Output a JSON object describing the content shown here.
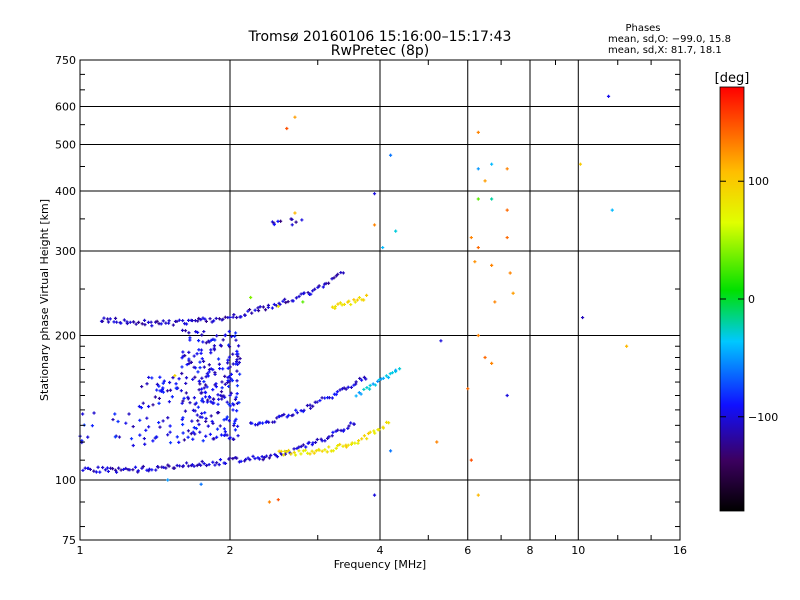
{
  "chart_data": {
    "type": "scatter",
    "title": "Tromsø 20160106 15:16:00–15:17:43",
    "subtitle": "RwPretec (8p)",
    "xlabel": "Frequency [MHz]",
    "ylabel": "Stationary phase Virtual Height [km]",
    "xscale": "log",
    "yscale": "log",
    "xlim": [
      1,
      16
    ],
    "ylim": [
      75,
      750
    ],
    "xticks": [
      1,
      2,
      4,
      6,
      8,
      10,
      16
    ],
    "xtick_labels": [
      "1",
      "2",
      "4",
      "6",
      "8",
      "10",
      "16"
    ],
    "yticks": [
      75,
      100,
      200,
      300,
      400,
      500,
      600,
      750
    ],
    "ytick_labels": [
      "75",
      "100",
      "200",
      "300",
      "400",
      "500",
      "600",
      "750"
    ],
    "grid": true,
    "colorbar": {
      "label": "[deg]",
      "range": [
        -180,
        180
      ],
      "ticks": [
        -100,
        0,
        100
      ],
      "tick_labels": [
        "−100",
        "0",
        "100"
      ]
    },
    "stats": {
      "heading": "Phases",
      "line_o": "mean, sd,O:  −99.0, 15.8",
      "line_x": "mean, sd,X:  81.7, 18.1"
    },
    "traces": [
      {
        "name": "",
        "f": [
          1.0,
          1.1,
          1.2,
          1.3,
          1.4,
          1.5,
          1.6,
          1.7,
          1.8,
          1.9,
          2.0,
          2.2,
          2.4,
          2.6,
          2.8,
          3.0,
          3.2,
          3.4,
          3.6
        ],
        "h": [
          106,
          105,
          105,
          105,
          106,
          107,
          107,
          108,
          108,
          109,
          110,
          111,
          112,
          114,
          117,
          120,
          124,
          128,
          133
        ],
        "phase": -105
      },
      {
        "name": "",
        "f": [
          2.5,
          2.8,
          3.0,
          3.2,
          3.4,
          3.6,
          3.8,
          4.0,
          4.2
        ],
        "h": [
          114,
          114,
          115,
          116,
          118,
          120,
          124,
          128,
          132
        ],
        "phase": 85
      },
      {
        "name": "",
        "f": [
          1.1,
          1.2,
          1.3,
          1.4,
          1.5,
          1.6,
          1.7,
          1.8,
          1.9,
          2.0,
          2.2,
          2.4,
          2.6,
          2.8,
          3.0,
          3.2,
          3.4
        ],
        "h": [
          215,
          215,
          213,
          212,
          212,
          213,
          215,
          215,
          216,
          218,
          224,
          230,
          236,
          242,
          250,
          262,
          275
        ],
        "phase": -110
      },
      {
        "name": "",
        "f": [
          3.2,
          3.4,
          3.6,
          3.8
        ],
        "h": [
          230,
          232,
          236,
          242
        ],
        "phase": 90
      },
      {
        "name": "",
        "f": [
          2.2,
          2.4,
          2.6,
          2.8,
          3.0,
          3.2,
          3.4,
          3.6,
          3.8
        ],
        "h": [
          130,
          133,
          136,
          140,
          145,
          150,
          155,
          160,
          165
        ],
        "phase": -100
      },
      {
        "name": "",
        "f": [
          3.6,
          3.8,
          4.0,
          4.2,
          4.4
        ],
        "h": [
          150,
          155,
          160,
          166,
          172
        ],
        "phase": -40
      }
    ],
    "clusters": [
      {
        "f": [
          1.6,
          2.1
        ],
        "h": [
          120,
          205
        ],
        "n": 240,
        "phase": -100
      },
      {
        "f": [
          1.0,
          1.6
        ],
        "h": [
          118,
          138
        ],
        "n": 40,
        "phase": -95
      },
      {
        "f": [
          1.3,
          1.6
        ],
        "h": [
          140,
          165
        ],
        "n": 35,
        "phase": -100
      },
      {
        "f": [
          2.4,
          2.8
        ],
        "h": [
          340,
          350
        ],
        "n": 10,
        "phase": -110
      }
    ],
    "points": [
      {
        "f": 2.7,
        "h": 570,
        "phase": 120
      },
      {
        "f": 2.6,
        "h": 540,
        "phase": 150
      },
      {
        "f": 11.5,
        "h": 630,
        "phase": -95
      },
      {
        "f": 4.2,
        "h": 475,
        "phase": -60
      },
      {
        "f": 6.3,
        "h": 530,
        "phase": 130
      },
      {
        "f": 6.3,
        "h": 445,
        "phase": -50
      },
      {
        "f": 6.5,
        "h": 420,
        "phase": 120
      },
      {
        "f": 6.7,
        "h": 455,
        "phase": -40
      },
      {
        "f": 7.2,
        "h": 445,
        "phase": 130
      },
      {
        "f": 6.3,
        "h": 385,
        "phase": 30
      },
      {
        "f": 6.7,
        "h": 385,
        "phase": -20
      },
      {
        "f": 7.2,
        "h": 365,
        "phase": 140
      },
      {
        "f": 10.1,
        "h": 455,
        "phase": 100
      },
      {
        "f": 11.7,
        "h": 365,
        "phase": -40
      },
      {
        "f": 6.1,
        "h": 320,
        "phase": 130
      },
      {
        "f": 6.3,
        "h": 305,
        "phase": 140
      },
      {
        "f": 6.2,
        "h": 285,
        "phase": 125
      },
      {
        "f": 6.7,
        "h": 280,
        "phase": 130
      },
      {
        "f": 7.2,
        "h": 320,
        "phase": 140
      },
      {
        "f": 7.3,
        "h": 270,
        "phase": 130
      },
      {
        "f": 6.8,
        "h": 235,
        "phase": 130
      },
      {
        "f": 7.4,
        "h": 245,
        "phase": 120
      },
      {
        "f": 4.05,
        "h": 305,
        "phase": -40
      },
      {
        "f": 4.3,
        "h": 330,
        "phase": -30
      },
      {
        "f": 3.9,
        "h": 395,
        "phase": -100
      },
      {
        "f": 3.9,
        "h": 340,
        "phase": 130
      },
      {
        "f": 10.2,
        "h": 218,
        "phase": -110
      },
      {
        "f": 12.5,
        "h": 190,
        "phase": 110
      },
      {
        "f": 5.3,
        "h": 195,
        "phase": -100
      },
      {
        "f": 6.5,
        "h": 180,
        "phase": 140
      },
      {
        "f": 6.3,
        "h": 200,
        "phase": 130
      },
      {
        "f": 6.7,
        "h": 175,
        "phase": 130
      },
      {
        "f": 6.0,
        "h": 155,
        "phase": 140
      },
      {
        "f": 7.2,
        "h": 150,
        "phase": -100
      },
      {
        "f": 5.2,
        "h": 120,
        "phase": 130
      },
      {
        "f": 6.1,
        "h": 110,
        "phase": 150
      },
      {
        "f": 6.3,
        "h": 93,
        "phase": 110
      },
      {
        "f": 3.9,
        "h": 93,
        "phase": -100
      },
      {
        "f": 2.4,
        "h": 90,
        "phase": 130
      },
      {
        "f": 2.5,
        "h": 91,
        "phase": 150
      },
      {
        "f": 1.5,
        "h": 100,
        "phase": -50
      },
      {
        "f": 1.75,
        "h": 98,
        "phase": -60
      },
      {
        "f": 4.2,
        "h": 115,
        "phase": -60
      },
      {
        "f": 2.5,
        "h": 230,
        "phase": 80
      },
      {
        "f": 2.2,
        "h": 240,
        "phase": 40
      },
      {
        "f": 2.8,
        "h": 235,
        "phase": 30
      },
      {
        "f": 2.7,
        "h": 360,
        "phase": 110
      },
      {
        "f": 1.55,
        "h": 165,
        "phase": 90
      }
    ]
  }
}
